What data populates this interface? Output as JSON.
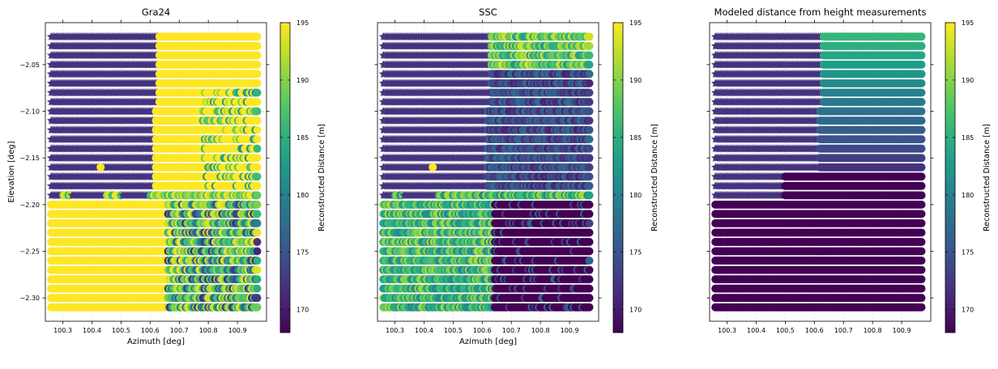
{
  "colormap": "viridis",
  "chart_data": [
    {
      "type": "scatter",
      "title": "Gra24",
      "xlabel": "Azimuth [deg]",
      "ylabel": "Elevation [deg]",
      "xlim": [
        100.24,
        101.0
      ],
      "ylim": [
        -2.325,
        -2.005
      ],
      "xticks": [
        100.3,
        100.4,
        100.5,
        100.6,
        100.7,
        100.8,
        100.9
      ],
      "yticks": [
        -2.3,
        -2.25,
        -2.2,
        -2.15,
        -2.1,
        -2.05
      ],
      "colorbar": {
        "label": "Reconstructed Distance [m]",
        "range": [
          168,
          195
        ],
        "ticks": [
          170,
          175,
          180,
          185,
          190,
          195
        ]
      },
      "scene": "gra24",
      "grid": {
        "az_start": 100.26,
        "az_end": 100.97,
        "az_step": 0.006,
        "el_start": -2.02,
        "el_end": -2.31,
        "el_step": 0.01
      },
      "note": "stars: below-threshold samples (~172 m); circles: reconstructed distance, mostly saturated near 195 m"
    },
    {
      "type": "scatter",
      "title": "SSC",
      "xlabel": "Azimuth [deg]",
      "ylabel": "",
      "xlim": [
        100.24,
        101.0
      ],
      "ylim": [
        -2.325,
        -2.005
      ],
      "xticks": [
        100.3,
        100.4,
        100.5,
        100.6,
        100.7,
        100.8,
        100.9
      ],
      "yticks": [
        -2.3,
        -2.25,
        -2.2,
        -2.15,
        -2.1,
        -2.05
      ],
      "colorbar": {
        "label": "Reconstructed Distance [m]",
        "range": [
          168,
          195
        ],
        "ticks": [
          170,
          175,
          180,
          185,
          190,
          195
        ]
      },
      "scene": "ssc",
      "grid": {
        "az_start": 100.26,
        "az_end": 100.97,
        "az_step": 0.006,
        "el_start": -2.02,
        "el_end": -2.31,
        "el_step": 0.01
      }
    },
    {
      "type": "scatter",
      "title": "Modeled distance from height measurements",
      "xlabel": "",
      "ylabel": "",
      "xlim": [
        100.24,
        101.0
      ],
      "ylim": [
        -2.325,
        -2.005
      ],
      "xticks": [
        100.3,
        100.4,
        100.5,
        100.6,
        100.7,
        100.8,
        100.9
      ],
      "yticks": [
        -2.3,
        -2.25,
        -2.2,
        -2.15,
        -2.1,
        -2.05
      ],
      "colorbar": {
        "label": "Reconstructed Distance [m]",
        "range": [
          168,
          195
        ],
        "ticks": [
          170,
          175,
          180,
          185,
          190,
          195
        ]
      },
      "scene": "model",
      "grid": {
        "az_start": 100.26,
        "az_end": 100.97,
        "az_step": 0.006,
        "el_start": -2.02,
        "el_end": -2.31,
        "el_step": 0.01
      }
    }
  ]
}
